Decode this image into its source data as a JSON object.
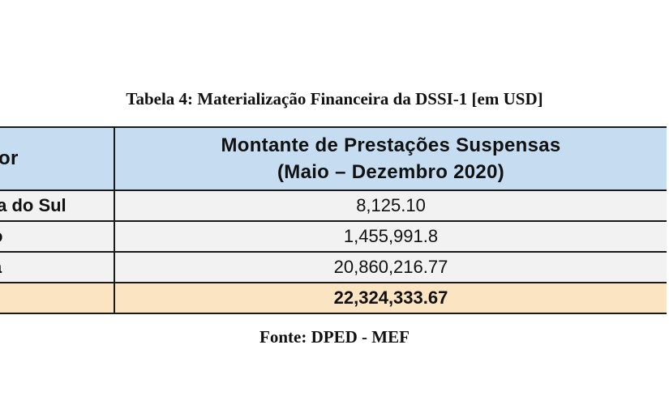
{
  "caption": "Tabela 4: Materialização Financeira da DSSI-1 [em USD]",
  "table": {
    "header": {
      "col1": "or",
      "col2_line1": "Montante de Prestações Suspensas",
      "col2_line2": "(Maio – Dezembro 2020)"
    },
    "rows": [
      {
        "label": "ia do Sul",
        "value": "8,125.10"
      },
      {
        "label": "o",
        "value": "1,455,991.8"
      },
      {
        "label": "a",
        "value": "20,860,216.77"
      }
    ],
    "total": {
      "label": "",
      "value": "22,324,333.67"
    }
  },
  "source": "Fonte: DPED - MEF",
  "colors": {
    "header_bg": "#c6dcf0",
    "row_bg": "#f2f2f2",
    "total_bg": "#fbe4c2"
  }
}
